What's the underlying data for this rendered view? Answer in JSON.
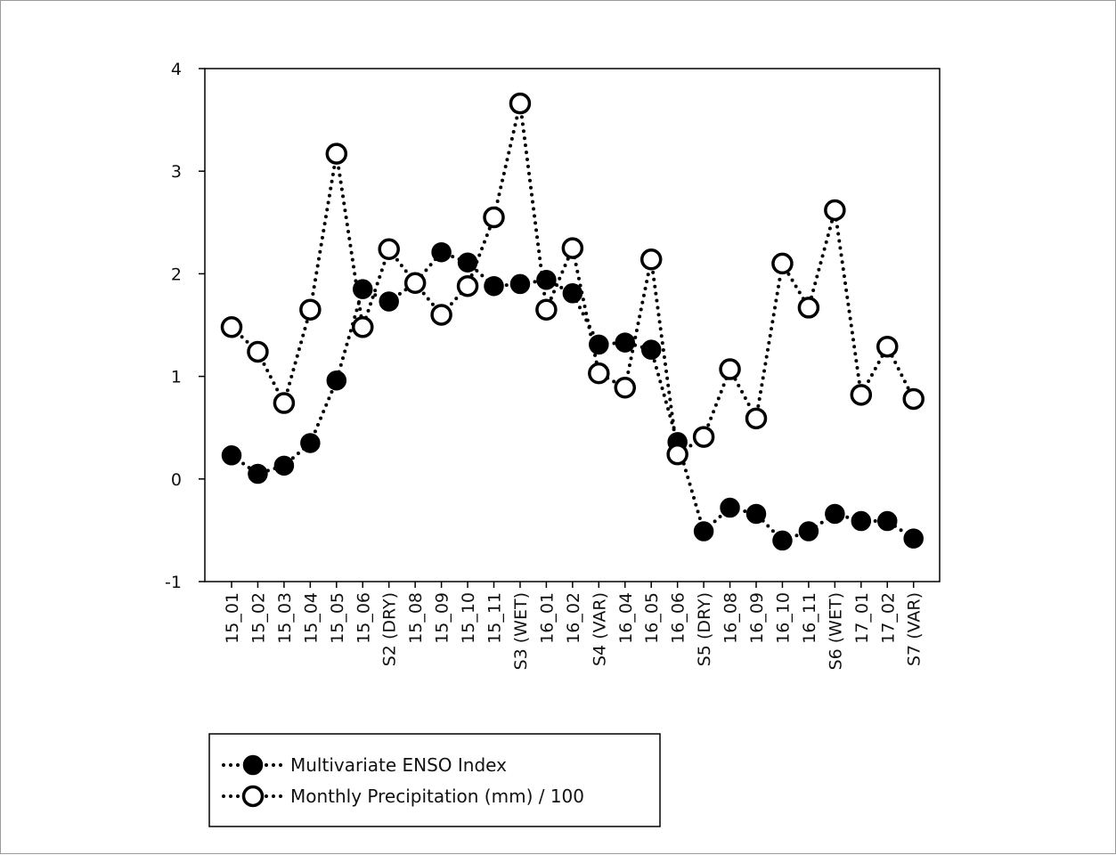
{
  "chart_data": {
    "type": "line",
    "title": "",
    "xlabel": "",
    "ylabel": "",
    "ylim": [
      -1,
      4
    ],
    "yticks": [
      -1,
      0,
      1,
      2,
      3,
      4
    ],
    "grid": false,
    "legend_placement": "bottom-left",
    "categories": [
      "15_01",
      "15_02",
      "15_03",
      "15_04",
      "15_05",
      "15_06",
      "S2 (DRY)",
      "15_08",
      "15_09",
      "15_10",
      "15_11",
      "S3 (WET)",
      "16_01",
      "16_02",
      "S4 (VAR)",
      "16_04",
      "16_05",
      "16_06",
      "S5 (DRY)",
      "16_08",
      "16_09",
      "16_10",
      "16_11",
      "S6 (WET)",
      "17_01",
      "17_02",
      "S7 (VAR)"
    ],
    "series": [
      {
        "name": "Multivariate ENSO Index",
        "marker": "filled-circle",
        "color": "#000000",
        "values": [
          0.23,
          0.05,
          0.13,
          0.35,
          0.96,
          1.85,
          1.73,
          1.91,
          2.21,
          2.11,
          1.88,
          1.9,
          1.94,
          1.81,
          1.31,
          1.33,
          1.26,
          0.36,
          -0.51,
          -0.28,
          -0.34,
          -0.6,
          -0.51,
          -0.34,
          -0.41,
          -0.41,
          -0.58
        ]
      },
      {
        "name": "Monthly Precipitation (mm) / 100",
        "marker": "open-circle",
        "color": "#000000",
        "values": [
          1.48,
          1.24,
          0.74,
          1.65,
          3.17,
          1.48,
          2.24,
          1.91,
          1.6,
          1.88,
          2.55,
          3.66,
          1.65,
          2.25,
          1.03,
          0.89,
          2.14,
          0.24,
          0.41,
          1.07,
          0.59,
          2.1,
          1.67,
          2.62,
          0.82,
          1.29,
          0.78
        ]
      }
    ]
  }
}
